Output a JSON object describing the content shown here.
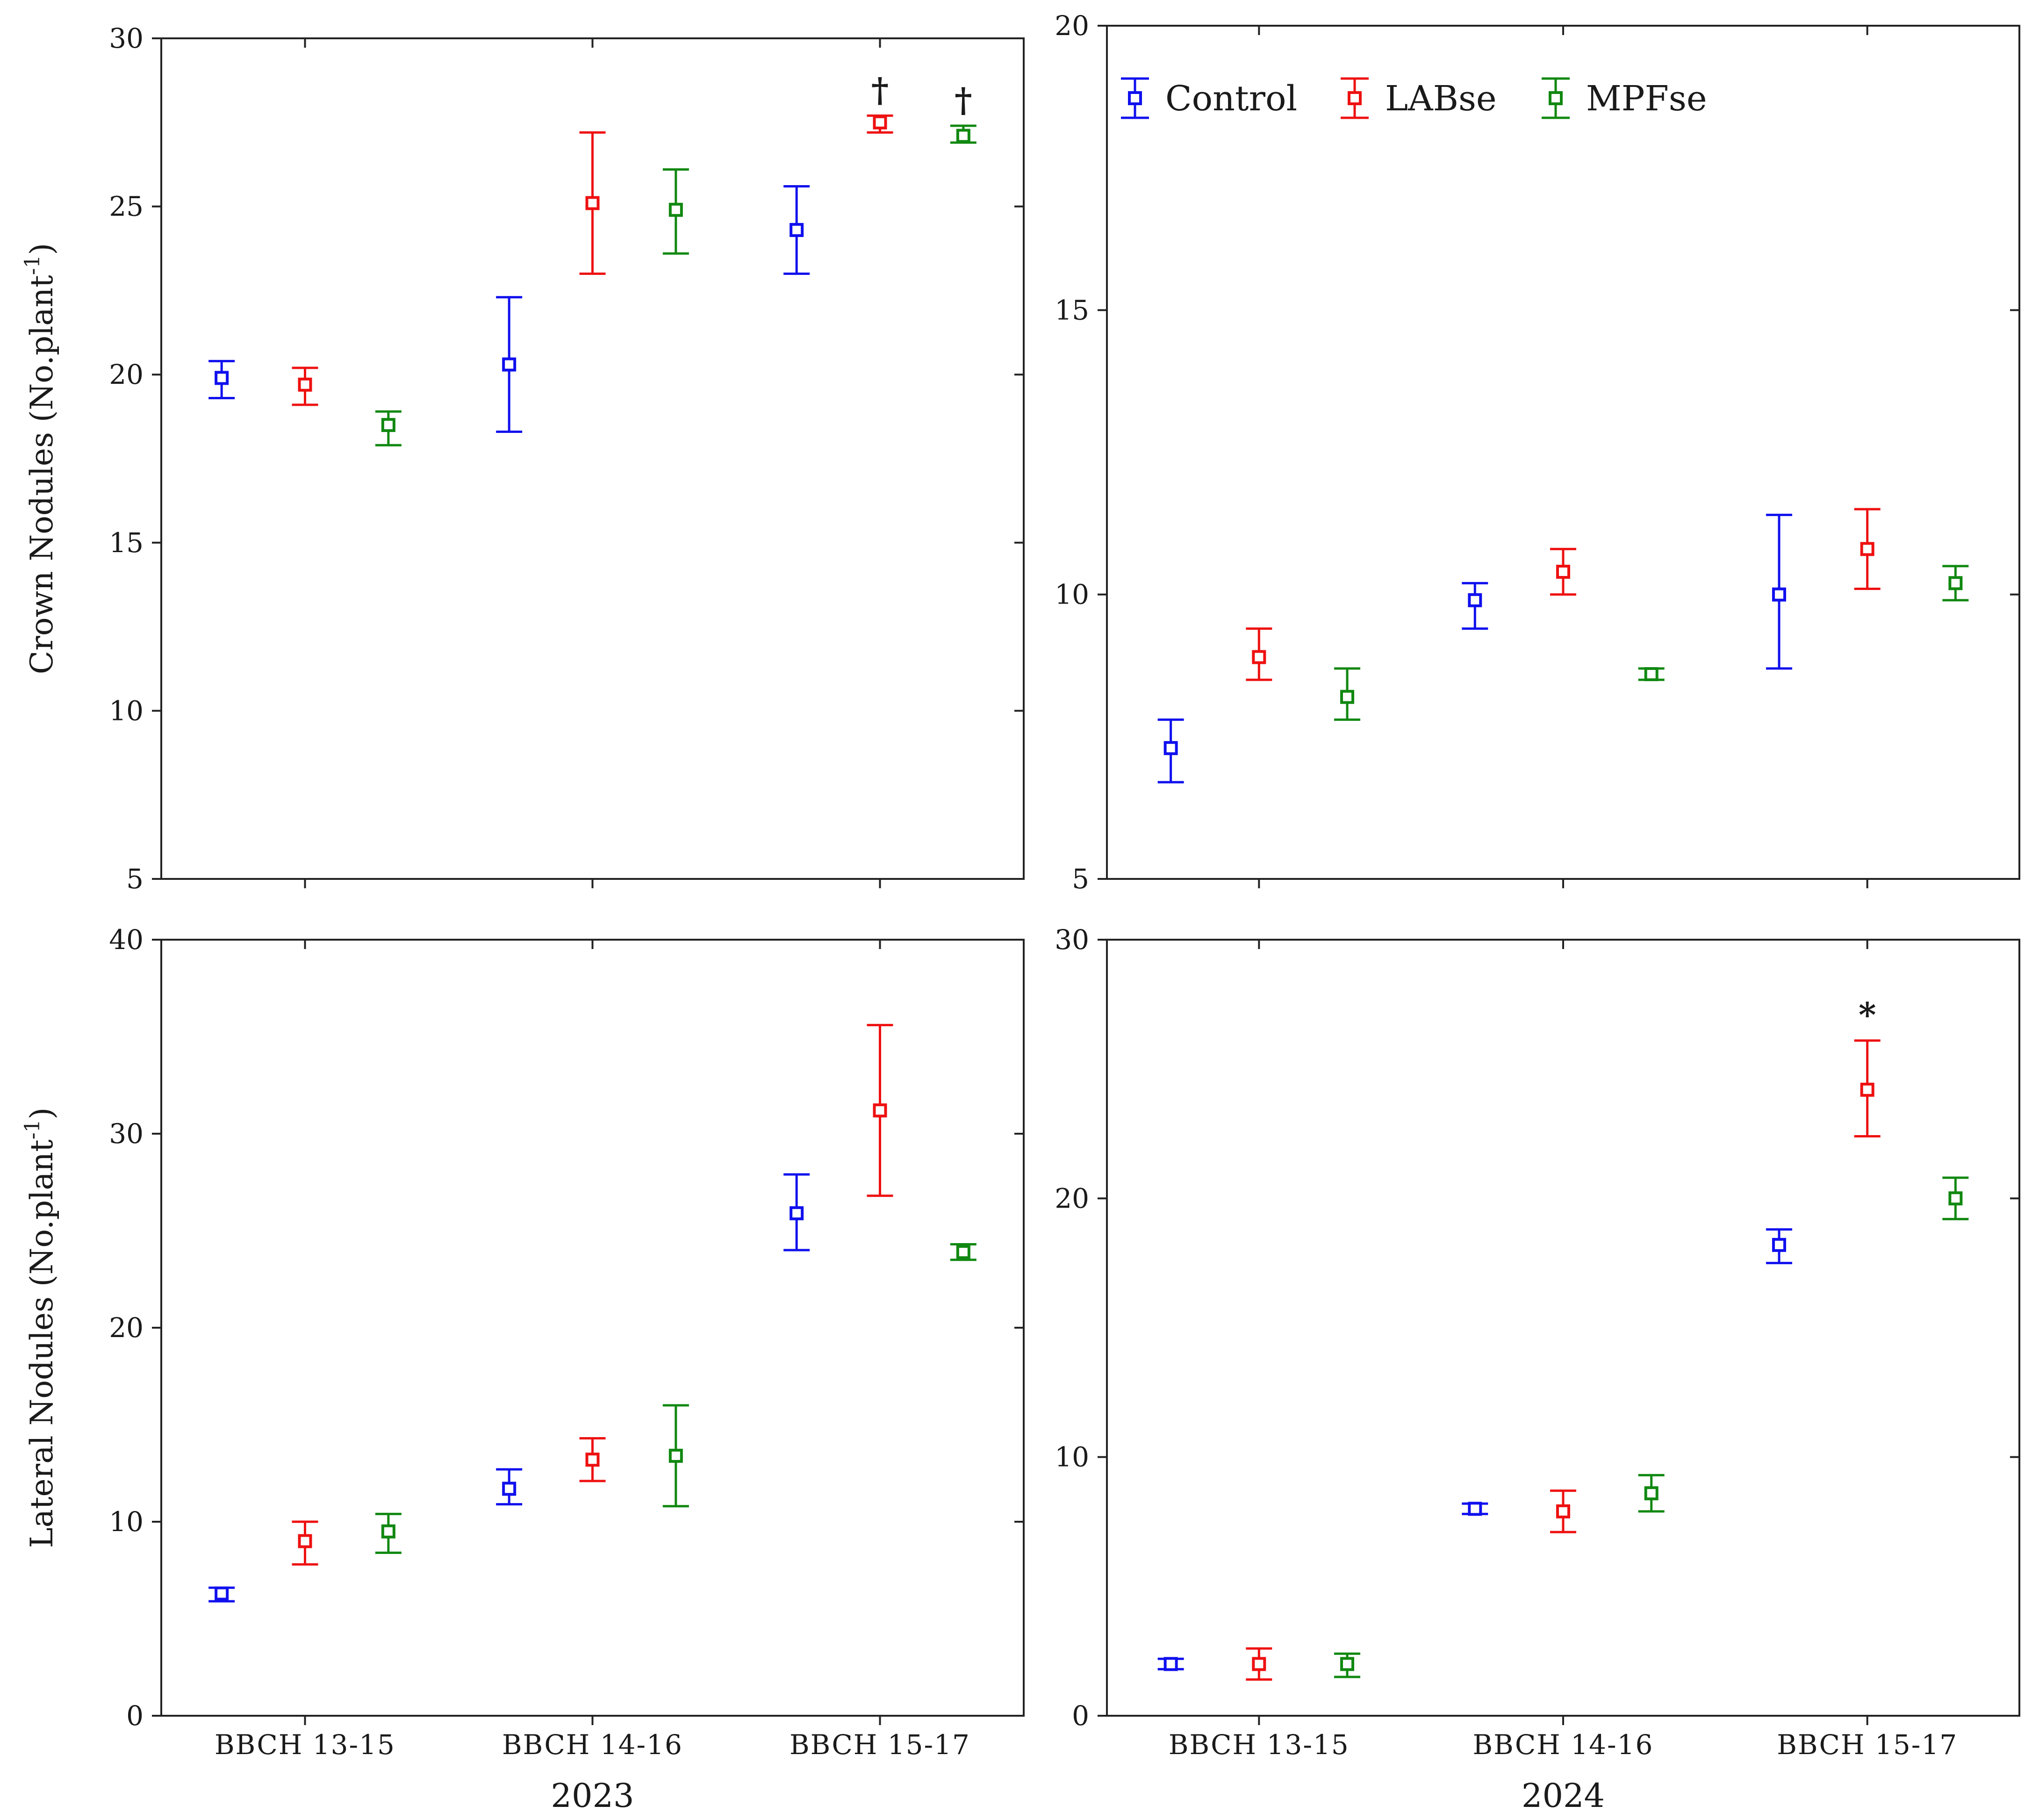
{
  "chart_data": [
    {
      "type": "scatter",
      "panel": "top-left",
      "xlabel": "",
      "ylabel": "Crown Nodules (No.plant",
      "ylabel_sup": "-1",
      "ylabel_close": ")",
      "ylim": [
        5,
        30
      ],
      "yticks": [
        5,
        10,
        15,
        20,
        25,
        30
      ],
      "categories": [
        "BBCH 13-15",
        "BBCH 14-16",
        "BBCH 15-17"
      ],
      "show_category_labels": false,
      "year": "",
      "series": [
        {
          "name": "Control",
          "color": "#1010ee",
          "means": [
            19.9,
            20.3,
            24.3
          ],
          "lower": [
            19.3,
            18.3,
            23.0
          ],
          "upper": [
            20.4,
            22.3,
            25.6
          ],
          "annotations": [
            "",
            "",
            ""
          ]
        },
        {
          "name": "LABse",
          "color": "#ee1111",
          "means": [
            19.7,
            25.1,
            27.5
          ],
          "lower": [
            19.1,
            23.0,
            27.2
          ],
          "upper": [
            20.2,
            27.2,
            27.7
          ],
          "annotations": [
            "",
            "",
            "†"
          ]
        },
        {
          "name": "MPFse",
          "color": "#118811",
          "means": [
            18.5,
            24.9,
            27.1
          ],
          "lower": [
            17.9,
            23.6,
            26.9
          ],
          "upper": [
            18.9,
            26.1,
            27.4
          ],
          "annotations": [
            "",
            "",
            "†"
          ]
        }
      ]
    },
    {
      "type": "scatter",
      "panel": "top-right",
      "xlabel": "",
      "ylabel": "",
      "ylim": [
        5,
        20
      ],
      "yticks": [
        5,
        10,
        15,
        20
      ],
      "categories": [
        "BBCH 13-15",
        "BBCH 14-16",
        "BBCH 15-17"
      ],
      "show_category_labels": false,
      "year": "",
      "legend": {
        "placement": "top-left",
        "entries": [
          "Control",
          "LABse",
          "MPFse"
        ]
      },
      "series": [
        {
          "name": "Control",
          "color": "#1010ee",
          "means": [
            7.3,
            9.9,
            10.0
          ],
          "lower": [
            6.7,
            9.4,
            8.7
          ],
          "upper": [
            7.8,
            10.2,
            11.4
          ],
          "annotations": [
            "",
            "",
            ""
          ]
        },
        {
          "name": "LABse",
          "color": "#ee1111",
          "means": [
            8.9,
            10.4,
            10.8
          ],
          "lower": [
            8.5,
            10.0,
            10.1
          ],
          "upper": [
            9.4,
            10.8,
            11.5
          ],
          "annotations": [
            "",
            "",
            ""
          ]
        },
        {
          "name": "MPFse",
          "color": "#118811",
          "means": [
            8.2,
            8.6,
            10.2
          ],
          "lower": [
            7.8,
            8.5,
            9.9
          ],
          "upper": [
            8.7,
            8.7,
            10.5
          ],
          "annotations": [
            "",
            "",
            ""
          ]
        }
      ]
    },
    {
      "type": "scatter",
      "panel": "bottom-left",
      "xlabel": "",
      "ylabel": "Lateral Nodules (No.plant",
      "ylabel_sup": "-1",
      "ylabel_close": ")",
      "ylim": [
        0,
        40
      ],
      "yticks": [
        0,
        10,
        20,
        30,
        40
      ],
      "categories": [
        "BBCH 13-15",
        "BBCH 14-16",
        "BBCH 15-17"
      ],
      "show_category_labels": true,
      "year": "2023",
      "series": [
        {
          "name": "Control",
          "color": "#1010ee",
          "means": [
            6.3,
            11.7,
            25.9
          ],
          "lower": [
            5.9,
            10.9,
            24.0
          ],
          "upper": [
            6.6,
            12.7,
            27.9
          ],
          "annotations": [
            "",
            "",
            ""
          ]
        },
        {
          "name": "LABse",
          "color": "#ee1111",
          "means": [
            9.0,
            13.2,
            31.2
          ],
          "lower": [
            7.8,
            12.1,
            26.8
          ],
          "upper": [
            10.0,
            14.3,
            35.6
          ],
          "annotations": [
            "",
            "",
            ""
          ]
        },
        {
          "name": "MPFse",
          "color": "#118811",
          "means": [
            9.5,
            13.4,
            23.9
          ],
          "lower": [
            8.4,
            10.8,
            23.5
          ],
          "upper": [
            10.4,
            16.0,
            24.3
          ],
          "annotations": [
            "",
            "",
            ""
          ]
        }
      ]
    },
    {
      "type": "scatter",
      "panel": "bottom-right",
      "xlabel": "",
      "ylabel": "",
      "ylim": [
        0,
        30
      ],
      "yticks": [
        0,
        10,
        20,
        30
      ],
      "categories": [
        "BBCH 13-15",
        "BBCH 14-16",
        "BBCH 15-17"
      ],
      "show_category_labels": true,
      "year": "2024",
      "series": [
        {
          "name": "Control",
          "color": "#1010ee",
          "means": [
            2.0,
            8.0,
            18.2
          ],
          "lower": [
            1.8,
            7.8,
            17.5
          ],
          "upper": [
            2.2,
            8.2,
            18.8
          ],
          "annotations": [
            "",
            "",
            ""
          ]
        },
        {
          "name": "LABse",
          "color": "#ee1111",
          "means": [
            2.0,
            7.9,
            24.2
          ],
          "lower": [
            1.4,
            7.1,
            22.4
          ],
          "upper": [
            2.6,
            8.7,
            26.1
          ],
          "annotations": [
            "",
            "",
            "*"
          ]
        },
        {
          "name": "MPFse",
          "color": "#118811",
          "means": [
            2.0,
            8.6,
            20.0
          ],
          "lower": [
            1.5,
            7.9,
            19.2
          ],
          "upper": [
            2.4,
            9.3,
            20.8
          ],
          "annotations": [
            "",
            "",
            ""
          ]
        }
      ]
    }
  ]
}
